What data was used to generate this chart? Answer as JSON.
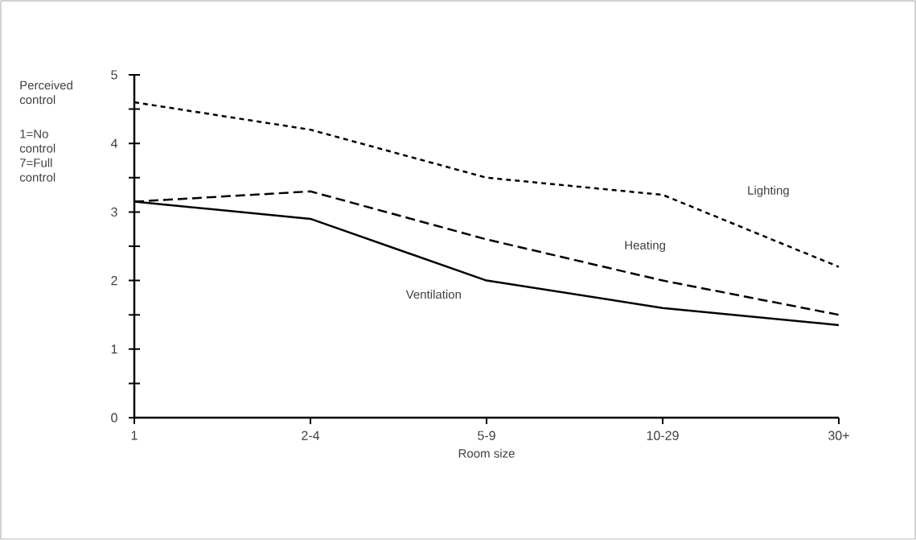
{
  "chart_data": {
    "type": "line",
    "xlabel": "Room size",
    "ylabel": "Perceived control",
    "annotations": [
      "1=No control 7=Full control"
    ],
    "categories": [
      "1",
      "2-4",
      "5-9",
      "10-29",
      "30+"
    ],
    "series": [
      {
        "name": "Lighting",
        "color": "#000000",
        "line_style": "dotted",
        "values": [
          4.6,
          4.2,
          3.5,
          3.25,
          2.2
        ]
      },
      {
        "name": "Heating",
        "color": "#000000",
        "line_style": "dashed",
        "values": [
          3.15,
          3.3,
          2.6,
          2.0,
          1.5
        ]
      },
      {
        "name": "Ventilation",
        "color": "#000000",
        "line_style": "solid",
        "values": [
          3.15,
          2.9,
          2.0,
          1.6,
          1.35
        ]
      }
    ],
    "ylim": [
      0,
      5
    ],
    "yticks": [
      0,
      {
        "value": 0.5,
        "label": null
      },
      1,
      {
        "value": 1.5,
        "label": null
      },
      2,
      {
        "value": 2.5,
        "label": null
      },
      3,
      {
        "value": 3.5,
        "label": null
      },
      4,
      {
        "value": 4.5,
        "label": null
      },
      5
    ],
    "marker": "none",
    "grid": false,
    "legend": false
  }
}
